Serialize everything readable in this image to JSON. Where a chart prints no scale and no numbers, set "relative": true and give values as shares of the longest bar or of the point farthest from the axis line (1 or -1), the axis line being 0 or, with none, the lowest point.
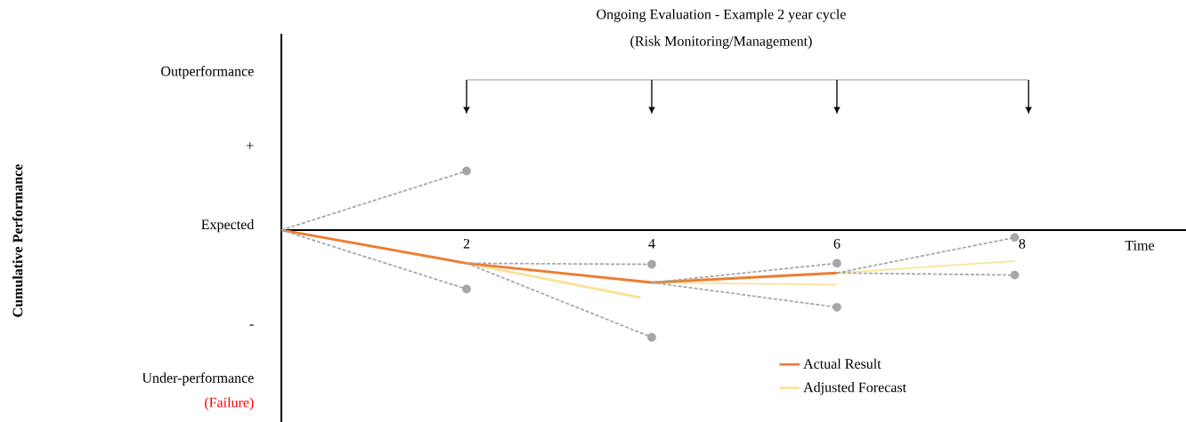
{
  "chart_data": {
    "type": "line",
    "relative": true,
    "title": "Ongoing Evaluation - Example 2 year cycle",
    "subtitle": "(Risk Monitoring/Management)",
    "xlabel": "Time",
    "xlim": [
      0,
      9.77
    ],
    "xticks": [
      2,
      4,
      6,
      8
    ],
    "legend": "bottom right",
    "annotations": [
      "Outperformance",
      "+",
      "Expected",
      "-",
      "Under-performance",
      "(Failure)",
      "Cumulative Performance"
    ],
    "series": [
      {
        "color": "#a6a6a6",
        "line_style": "dashed",
        "x": [
          0,
          2
        ],
        "values": [
          0,
          0.55
        ]
      },
      {
        "color": "#a6a6a6",
        "line_style": "dashed",
        "x": [
          0,
          2
        ],
        "values": [
          0,
          -0.55
        ]
      },
      {
        "color": "#a6a6a6",
        "line_style": "dashed",
        "x": [
          2,
          4
        ],
        "values": [
          -0.31,
          -0.32
        ]
      },
      {
        "color": "#a6a6a6",
        "line_style": "dashed",
        "x": [
          2,
          4
        ],
        "values": [
          -0.31,
          -1.0
        ]
      },
      {
        "color": "#a6a6a6",
        "line_style": "dashed",
        "x": [
          4,
          6
        ],
        "values": [
          -0.49,
          -0.31
        ]
      },
      {
        "color": "#a6a6a6",
        "line_style": "dashed",
        "x": [
          4,
          6
        ],
        "values": [
          -0.49,
          -0.72
        ]
      },
      {
        "color": "#a6a6a6",
        "line_style": "dashed",
        "x": [
          6,
          7.92
        ],
        "values": [
          -0.4,
          -0.07
        ]
      },
      {
        "color": "#a6a6a6",
        "line_style": "dashed",
        "x": [
          6,
          7.92
        ],
        "values": [
          -0.4,
          -0.42
        ]
      },
      {
        "name": "Adjusted Forecast",
        "color": "#fbe29a",
        "line_style": "solid",
        "x": [
          2,
          3.88
        ],
        "values": [
          -0.31,
          -0.63
        ]
      },
      {
        "color": "#fbe29a",
        "line_style": "solid",
        "x": [
          4,
          6
        ],
        "values": [
          -0.49,
          -0.51
        ]
      },
      {
        "color": "#fbe29a",
        "line_style": "solid",
        "x": [
          6,
          7.92
        ],
        "values": [
          -0.4,
          -0.29
        ]
      },
      {
        "name": "Actual Result",
        "color": "#ed7d31",
        "line_style": "solid",
        "x": [
          0,
          2,
          4,
          6
        ],
        "values": [
          0,
          -0.31,
          -0.49,
          -0.4
        ]
      },
      {
        "type": "scatter",
        "color": "#a6a6a6",
        "marker": "circle",
        "x": [
          2,
          2,
          4,
          4,
          6,
          6,
          7.92,
          7.92
        ],
        "values": [
          0.55,
          -0.55,
          -0.32,
          -1.0,
          -0.31,
          -0.72,
          -0.07,
          -0.42
        ]
      }
    ]
  }
}
